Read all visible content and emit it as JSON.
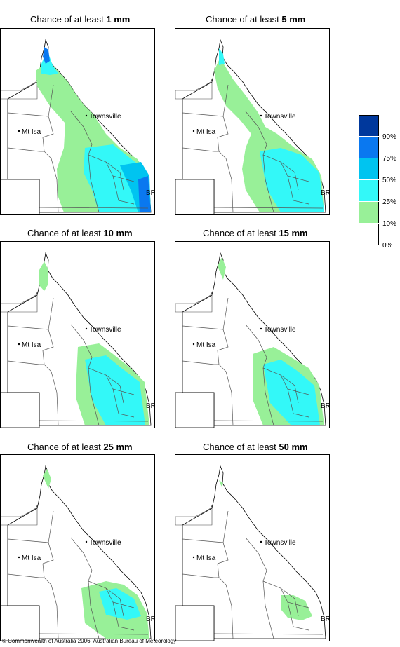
{
  "panels": [
    {
      "prefix": "Chance of at least ",
      "amount": "1 mm"
    },
    {
      "prefix": "Chance of at least ",
      "amount": "5 mm"
    },
    {
      "prefix": "Chance of at least ",
      "amount": "10 mm"
    },
    {
      "prefix": "Chance of at least ",
      "amount": "15 mm"
    },
    {
      "prefix": "Chance of at least ",
      "amount": "25 mm"
    },
    {
      "prefix": "Chance of at least ",
      "amount": "50 mm"
    }
  ],
  "map_labels": {
    "townsville": "Townsville",
    "mt_isa": "Mt Isa",
    "bris": "BRIS"
  },
  "legend": {
    "labels": [
      "90%",
      "75%",
      "50%",
      "25%",
      "10%",
      "0%"
    ],
    "colors": [
      "#00389c",
      "#0a78f0",
      "#00c4f0",
      "#33f8f8",
      "#98f098",
      "#ffffff"
    ]
  },
  "copyright": "© Commonwealth of Australia 2006, Australian Bureau of Meteorology"
}
